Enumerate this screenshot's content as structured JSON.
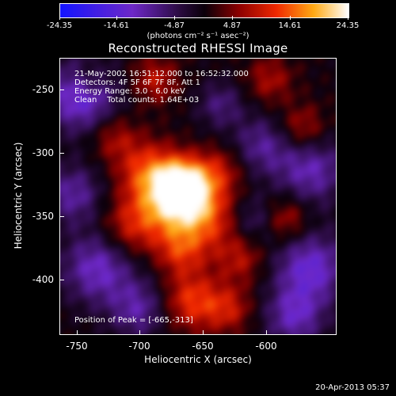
{
  "colorbar": {
    "ticks": [
      "-24.35",
      "-14.61",
      "-4.87",
      "4.87",
      "14.61",
      "24.35"
    ],
    "units": "(photons cm⁻² s⁻¹ asec⁻²)"
  },
  "title": "Reconstructed RHESSI Image",
  "info": {
    "line1": "21-May-2002 16:51:12.000 to 16:52:32.000",
    "line2": "Detectors: 4F 5F 6F 7F 8F, Att 1",
    "line3": "Energy Range: 3.0 - 6.0 keV",
    "line4": "Clean    Total counts: 1.64E+03"
  },
  "peak_label": "Position of Peak = [-665,-313]",
  "x_axis": {
    "label": "Heliocentric X (arcsec)",
    "ticks": [
      "-750",
      "-700",
      "-650",
      "-600"
    ]
  },
  "y_axis": {
    "label": "Heliocentric Y (arcsec)",
    "ticks": [
      "-250",
      "-300",
      "-350",
      "-400"
    ]
  },
  "footer": "20-Apr-2013 05:37",
  "colors": {
    "low": "#1010ff",
    "mid": "#000000",
    "high": "#ffffff",
    "hot": "#ff6000"
  }
}
